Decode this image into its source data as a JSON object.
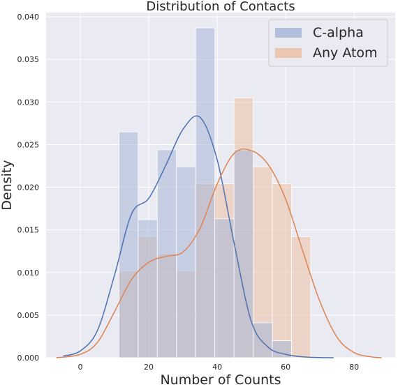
{
  "chart_data": {
    "type": "histogram",
    "title": "Distribution of Contacts",
    "xlabel": "Number of Counts",
    "ylabel": "Density",
    "xlim": [
      -10,
      92
    ],
    "ylim": [
      0,
      0.0405
    ],
    "xticks": [
      0,
      20,
      40,
      60,
      80
    ],
    "yticks": [
      0.0,
      0.005,
      0.01,
      0.015,
      0.02,
      0.025,
      0.03,
      0.035,
      0.04
    ],
    "ytick_labels": [
      "0.000",
      "0.005",
      "0.010",
      "0.015",
      "0.020",
      "0.025",
      "0.030",
      "0.035",
      "0.040"
    ],
    "grid": true,
    "legend_position": "top-right",
    "bin_edges": [
      11.3,
      16.9,
      22.5,
      28.1,
      33.7,
      39.3,
      44.9,
      50.5,
      56.1,
      61.7,
      67.3
    ],
    "series": [
      {
        "name": "C-alpha",
        "color": "#4c72b0",
        "bar_color": "#a7b6d8",
        "hist_values": [
          0.0265,
          0.0162,
          0.0244,
          0.0224,
          0.0387,
          0.0163,
          0.0244,
          0.0041,
          0.002,
          0.0
        ],
        "kde": {
          "x": [
            -5,
            0,
            5,
            10,
            15,
            20,
            25,
            30,
            35,
            40,
            45,
            50,
            55,
            60,
            65,
            70,
            74
          ],
          "y": [
            0.0002,
            0.0008,
            0.0032,
            0.0097,
            0.0169,
            0.0187,
            0.0226,
            0.0268,
            0.0282,
            0.0232,
            0.0133,
            0.0042,
            0.0012,
            0.0004,
            0.0001,
            2e-05,
            0.0
          ]
        }
      },
      {
        "name": "Any Atom",
        "color": "#dd8452",
        "bar_color": "#edbfa6",
        "hist_values": [
          0.0102,
          0.0142,
          0.0122,
          0.0102,
          0.0204,
          0.0204,
          0.0305,
          0.0224,
          0.0204,
          0.0142
        ],
        "kde": {
          "x": [
            -7,
            0,
            5,
            10,
            15,
            20,
            25,
            30,
            35,
            40,
            45,
            50,
            55,
            60,
            65,
            70,
            75,
            80,
            85,
            88
          ],
          "y": [
            0.0,
            0.0004,
            0.0018,
            0.0054,
            0.0092,
            0.0112,
            0.0119,
            0.0124,
            0.0152,
            0.0204,
            0.024,
            0.0243,
            0.0226,
            0.0186,
            0.0125,
            0.0066,
            0.0024,
            0.0006,
            0.0001,
            0.0
          ]
        }
      }
    ]
  }
}
